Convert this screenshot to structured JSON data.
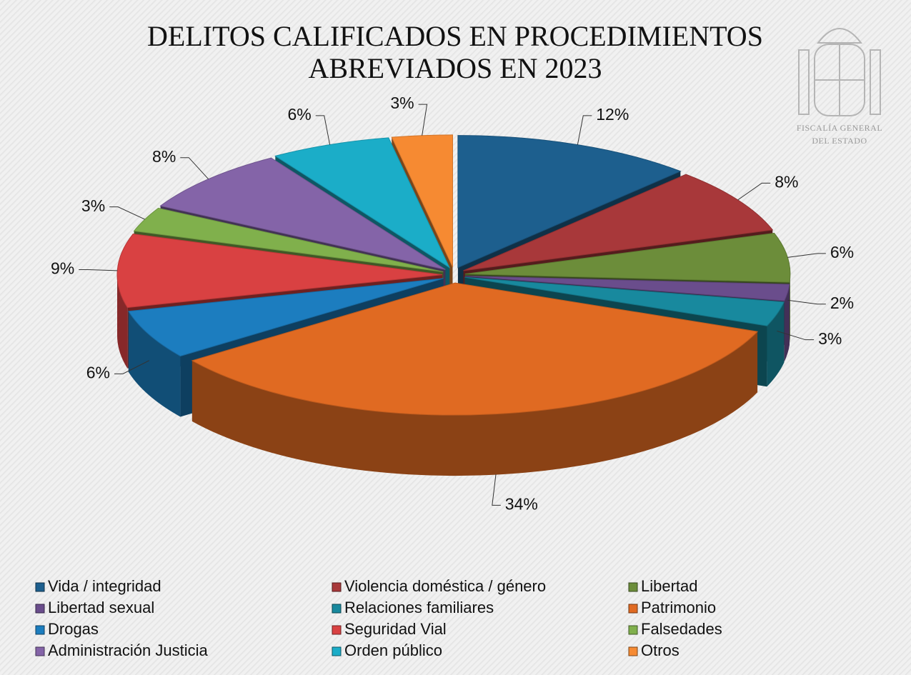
{
  "chart_data": {
    "type": "pie3d",
    "title": [
      "DELITOS CALIFICADOS EN PROCEDIMIENTOS",
      "ABREVIADOS EN 2023"
    ],
    "logo": [
      "FISCALÍA GENERAL",
      "DEL ESTADO"
    ],
    "categories": [
      "Vida / integridad",
      "Violencia doméstica / género",
      "Libertad",
      "Libertad sexual",
      "Relaciones familiares",
      "Patrimonio",
      "Drogas",
      "Seguridad Vial",
      "Falsedades",
      "Administración Justicia",
      "Orden público",
      "Otros"
    ],
    "values": [
      12,
      8,
      6,
      2,
      3,
      34,
      6,
      9,
      3,
      8,
      6,
      3
    ],
    "value_labels": [
      "12%",
      "8%",
      "6%",
      "2%",
      "3%",
      "34%",
      "6%",
      "9%",
      "3%",
      "8%",
      "6%",
      "3%"
    ],
    "colors": [
      "#1d5f8e",
      "#a8383a",
      "#6c8d3a",
      "#6a4d8c",
      "#18899e",
      "#e06a22",
      "#1c7dbf",
      "#d94142",
      "#80b04c",
      "#8464a8",
      "#1badc8",
      "#f68a32"
    ],
    "legend": "bottom"
  }
}
